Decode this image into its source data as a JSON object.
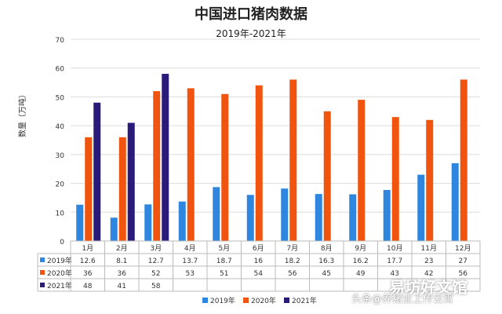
{
  "chart_data": {
    "type": "bar",
    "title": "中国进口猪肉数据",
    "subtitle": "2019年-2021年",
    "xlabel": "",
    "ylabel": "数量（万吨）",
    "ylim": [
      0,
      70
    ],
    "yticks": [
      0,
      10,
      20,
      30,
      40,
      50,
      60,
      70
    ],
    "categories": [
      "1月",
      "2月",
      "3月",
      "4月",
      "5月",
      "6月",
      "7月",
      "8月",
      "9月",
      "10月",
      "11月",
      "12月"
    ],
    "series": [
      {
        "name": "2019年",
        "color": "#2e86de",
        "values": [
          12.6,
          8.1,
          12.7,
          13.7,
          18.7,
          16,
          18.2,
          16.3,
          16.2,
          17.7,
          23,
          27
        ]
      },
      {
        "name": "2020年",
        "color": "#f0540f",
        "values": [
          36,
          36,
          52,
          53,
          51,
          54,
          56,
          45,
          49,
          43,
          42,
          56
        ]
      },
      {
        "name": "2021年",
        "color": "#2a1a7a",
        "values": [
          48,
          41,
          58,
          null,
          null,
          null,
          null,
          null,
          null,
          null,
          null,
          null
        ]
      }
    ],
    "legend_position": "bottom",
    "data_table": true,
    "grid": true
  },
  "watermark": {
    "main": "易坊好文馆",
    "sub": "头条@养猪业上传云霄"
  }
}
